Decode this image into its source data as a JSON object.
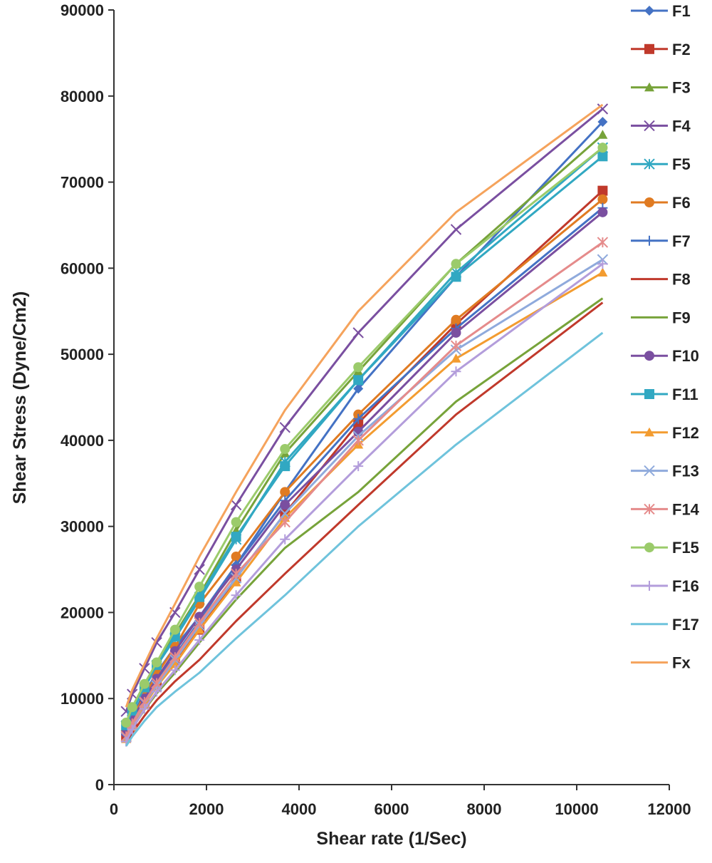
{
  "chart_data": {
    "type": "line",
    "title": "",
    "xlabel": "Shear rate (1/Sec)",
    "ylabel": "Shear  Stress (Dyne/Cm2)",
    "xlim": [
      0,
      12000
    ],
    "ylim": [
      0,
      90000
    ],
    "xticks": [
      0,
      2000,
      4000,
      6000,
      8000,
      10000,
      12000
    ],
    "yticks": [
      0,
      10000,
      20000,
      30000,
      40000,
      50000,
      60000,
      70000,
      80000,
      90000
    ],
    "grid": false,
    "legend_position": "right",
    "x": [
      264,
      396,
      660,
      924,
      1320,
      1848,
      2640,
      3696,
      5280,
      7392,
      10560
    ],
    "series": [
      {
        "name": "F1",
        "color": "#4472c4",
        "marker": "diamond",
        "values": [
          6500,
          8000,
          10600,
          13000,
          16000,
          19500,
          25500,
          34000,
          46000,
          59000,
          77000
        ]
      },
      {
        "name": "F2",
        "color": "#c0392b",
        "marker": "square",
        "values": [
          5500,
          7000,
          9500,
          11800,
          14500,
          18000,
          24000,
          31500,
          42000,
          53500,
          69000
        ]
      },
      {
        "name": "F3",
        "color": "#77a33a",
        "marker": "triangle",
        "values": [
          7000,
          8800,
          11500,
          14000,
          17500,
          22000,
          29500,
          38500,
          48000,
          60500,
          75500
        ]
      },
      {
        "name": "F4",
        "color": "#7a4fa0",
        "marker": "x",
        "values": [
          8500,
          10500,
          13500,
          16500,
          20000,
          25000,
          32500,
          41500,
          52500,
          64500,
          78500
        ]
      },
      {
        "name": "F5",
        "color": "#31a8c2",
        "marker": "star",
        "values": [
          6800,
          8500,
          11200,
          13800,
          17000,
          21500,
          28500,
          37500,
          47000,
          59500,
          74000
        ]
      },
      {
        "name": "F6",
        "color": "#e07b22",
        "marker": "circle",
        "values": [
          6200,
          7800,
          10300,
          12800,
          16000,
          21000,
          26500,
          34000,
          43000,
          54000,
          68000
        ]
      },
      {
        "name": "F7",
        "color": "#4472c4",
        "marker": "plus",
        "values": [
          5800,
          7200,
          9800,
          12000,
          15000,
          19000,
          25500,
          33000,
          42500,
          53000,
          67000
        ]
      },
      {
        "name": "F8",
        "color": "#c0392b",
        "marker": "none",
        "values": [
          4800,
          6000,
          8000,
          9800,
          12000,
          14500,
          19000,
          24500,
          32500,
          43000,
          56000
        ]
      },
      {
        "name": "F9",
        "color": "#77a33a",
        "marker": "none",
        "values": [
          5000,
          6500,
          8700,
          10600,
          13000,
          16500,
          21500,
          27500,
          34000,
          44500,
          56500
        ]
      },
      {
        "name": "F10",
        "color": "#7a4fa0",
        "marker": "circle",
        "values": [
          6000,
          7500,
          10000,
          12300,
          15500,
          19500,
          25000,
          32500,
          41000,
          52500,
          66500
        ]
      },
      {
        "name": "F11",
        "color": "#31a8c2",
        "marker": "square",
        "values": [
          6900,
          8600,
          11300,
          13900,
          17200,
          21800,
          28800,
          37000,
          47000,
          59000,
          73000
        ]
      },
      {
        "name": "F12",
        "color": "#f39c30",
        "marker": "triangle",
        "values": [
          5300,
          6700,
          9200,
          11400,
          14000,
          18000,
          23500,
          31000,
          39500,
          49500,
          59500
        ]
      },
      {
        "name": "F13",
        "color": "#8faadc",
        "marker": "x",
        "values": [
          5500,
          7000,
          9500,
          11500,
          14500,
          18500,
          24000,
          31500,
          40500,
          50500,
          61000
        ]
      },
      {
        "name": "F14",
        "color": "#e58b8b",
        "marker": "star",
        "values": [
          5600,
          7100,
          9600,
          11800,
          14800,
          18800,
          24500,
          30500,
          40000,
          51000,
          63000
        ]
      },
      {
        "name": "F15",
        "color": "#9bcb6b",
        "marker": "circle",
        "values": [
          7200,
          9000,
          11700,
          14200,
          18000,
          23000,
          30500,
          39000,
          48500,
          60500,
          74000
        ]
      },
      {
        "name": "F16",
        "color": "#b39ddb",
        "marker": "plus",
        "values": [
          5000,
          6400,
          8800,
          10800,
          13300,
          16800,
          22000,
          28500,
          37000,
          48000,
          60500
        ]
      },
      {
        "name": "F17",
        "color": "#6fc3dc",
        "marker": "none",
        "values": [
          4500,
          5600,
          7400,
          9000,
          10800,
          13000,
          17000,
          22000,
          30000,
          39500,
          52500
        ]
      },
      {
        "name": "Fx",
        "color": "#f5a35c",
        "marker": "none",
        "values": [
          9000,
          11000,
          14000,
          17000,
          21000,
          26500,
          34000,
          43500,
          55000,
          66500,
          79000
        ]
      }
    ]
  }
}
